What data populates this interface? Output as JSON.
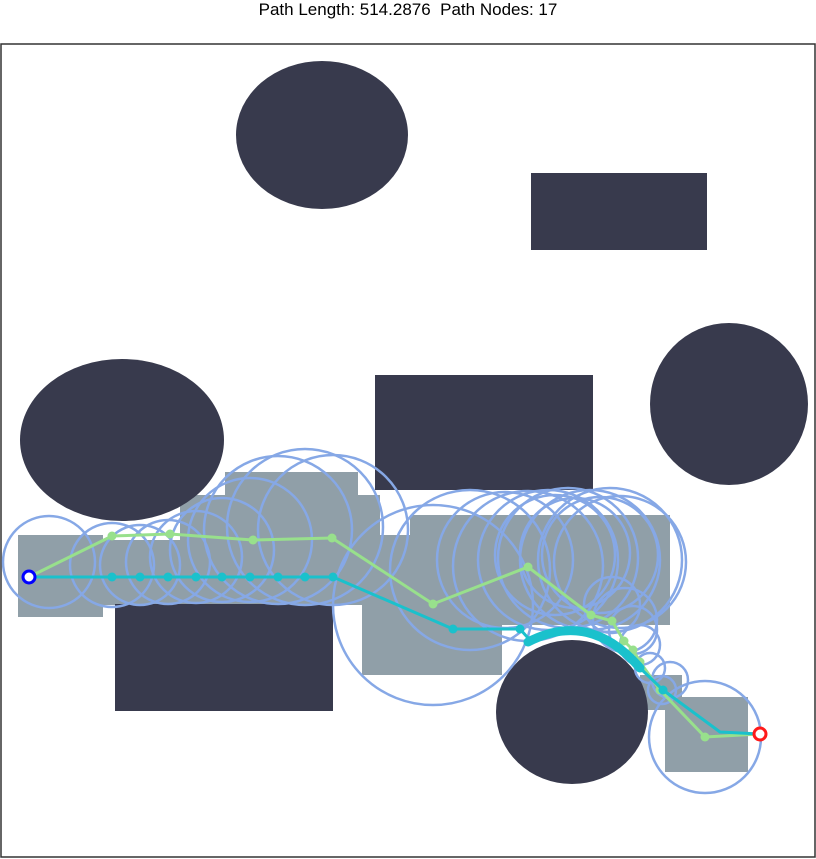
{
  "title": {
    "path_length_label": "Path Length: 514.2876",
    "path_nodes_label": "Path Nodes: 17"
  },
  "colors": {
    "obstacle": "#383a4d",
    "explored_region": "#909fa8",
    "search_circle": "#86a8e6",
    "raw_path": "#98e08c",
    "smoothed_path": "#1ac1cc",
    "start_marker": "#0000ff",
    "goal_marker": "#ff1a1a",
    "frame": "#333333"
  },
  "markers": {
    "start": "start-marker",
    "goal": "goal-marker"
  }
}
